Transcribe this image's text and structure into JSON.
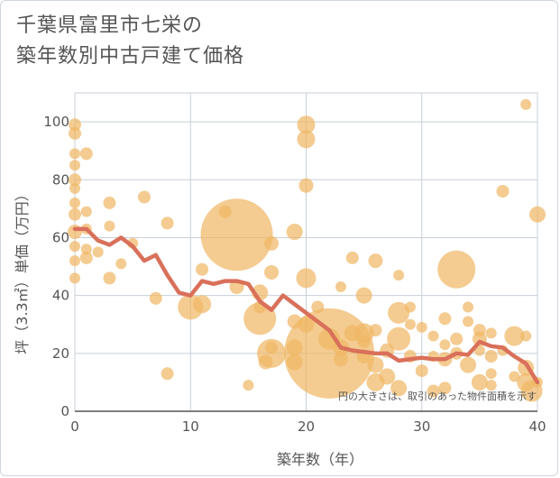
{
  "title": {
    "line1": "千葉県富里市七栄の",
    "line2": "築年数別中古戸建て価格"
  },
  "chart_data": {
    "type": "scatter",
    "xlabel": "築年数（年）",
    "ylabel": "坪（3.3㎡）単価（万円）",
    "xlim": [
      0,
      40
    ],
    "ylim": [
      0,
      110
    ],
    "xticks": [
      0,
      10,
      20,
      30,
      40
    ],
    "yticks": [
      0,
      20,
      40,
      60,
      80,
      100
    ],
    "grid": true,
    "note": "円の大きさは、取引のあった物件面積を示す",
    "bubble_color": "#f0b765",
    "line_color": "#d9705a",
    "bubbles": [
      {
        "x": 0,
        "y": 99,
        "r": 7
      },
      {
        "x": 0,
        "y": 96,
        "r": 7
      },
      {
        "x": 0,
        "y": 89,
        "r": 6
      },
      {
        "x": 0,
        "y": 85,
        "r": 6
      },
      {
        "x": 0,
        "y": 80,
        "r": 7
      },
      {
        "x": 0,
        "y": 77,
        "r": 6
      },
      {
        "x": 0,
        "y": 72,
        "r": 6
      },
      {
        "x": 0,
        "y": 68,
        "r": 7
      },
      {
        "x": 0,
        "y": 62,
        "r": 8
      },
      {
        "x": 0,
        "y": 57,
        "r": 6
      },
      {
        "x": 0,
        "y": 52,
        "r": 6
      },
      {
        "x": 0,
        "y": 46,
        "r": 6
      },
      {
        "x": 1,
        "y": 89,
        "r": 7
      },
      {
        "x": 1,
        "y": 69,
        "r": 6
      },
      {
        "x": 1,
        "y": 63,
        "r": 6
      },
      {
        "x": 1,
        "y": 56,
        "r": 6
      },
      {
        "x": 1,
        "y": 53,
        "r": 7
      },
      {
        "x": 2,
        "y": 55,
        "r": 6
      },
      {
        "x": 3,
        "y": 72,
        "r": 7
      },
      {
        "x": 3,
        "y": 64,
        "r": 6
      },
      {
        "x": 3,
        "y": 46,
        "r": 7
      },
      {
        "x": 4,
        "y": 51,
        "r": 6
      },
      {
        "x": 5,
        "y": 58,
        "r": 6
      },
      {
        "x": 6,
        "y": 74,
        "r": 7
      },
      {
        "x": 7,
        "y": 39,
        "r": 7
      },
      {
        "x": 8,
        "y": 65,
        "r": 7
      },
      {
        "x": 8,
        "y": 13,
        "r": 7
      },
      {
        "x": 10,
        "y": 36,
        "r": 14
      },
      {
        "x": 11,
        "y": 37,
        "r": 10
      },
      {
        "x": 11,
        "y": 49,
        "r": 7
      },
      {
        "x": 13,
        "y": 69,
        "r": 7
      },
      {
        "x": 14,
        "y": 61,
        "r": 40
      },
      {
        "x": 14,
        "y": 43,
        "r": 8
      },
      {
        "x": 15,
        "y": 9,
        "r": 6
      },
      {
        "x": 16,
        "y": 41,
        "r": 9
      },
      {
        "x": 16,
        "y": 36,
        "r": 7
      },
      {
        "x": 16,
        "y": 32,
        "r": 18
      },
      {
        "x": 16.5,
        "y": 17,
        "r": 8
      },
      {
        "x": 17,
        "y": 58,
        "r": 8
      },
      {
        "x": 17,
        "y": 48,
        "r": 8
      },
      {
        "x": 17,
        "y": 22,
        "r": 7
      },
      {
        "x": 17,
        "y": 20,
        "r": 16
      },
      {
        "x": 19,
        "y": 62,
        "r": 9
      },
      {
        "x": 19,
        "y": 31,
        "r": 8
      },
      {
        "x": 19,
        "y": 22,
        "r": 9
      },
      {
        "x": 19,
        "y": 17,
        "r": 9
      },
      {
        "x": 20,
        "y": 99,
        "r": 10
      },
      {
        "x": 20,
        "y": 94,
        "r": 10
      },
      {
        "x": 20,
        "y": 78,
        "r": 8
      },
      {
        "x": 20,
        "y": 46,
        "r": 11
      },
      {
        "x": 20,
        "y": 30,
        "r": 9
      },
      {
        "x": 21,
        "y": 36,
        "r": 7
      },
      {
        "x": 22,
        "y": 20,
        "r": 50
      },
      {
        "x": 22,
        "y": 25,
        "r": 12
      },
      {
        "x": 23,
        "y": 43,
        "r": 6
      },
      {
        "x": 23,
        "y": 22,
        "r": 9
      },
      {
        "x": 23,
        "y": 18,
        "r": 8
      },
      {
        "x": 24,
        "y": 53,
        "r": 7
      },
      {
        "x": 24,
        "y": 27,
        "r": 9
      },
      {
        "x": 25,
        "y": 40,
        "r": 9
      },
      {
        "x": 25,
        "y": 27,
        "r": 11
      },
      {
        "x": 25,
        "y": 24,
        "r": 7
      },
      {
        "x": 25,
        "y": 19,
        "r": 8
      },
      {
        "x": 26,
        "y": 52,
        "r": 8
      },
      {
        "x": 26,
        "y": 28,
        "r": 7
      },
      {
        "x": 26,
        "y": 16,
        "r": 9
      },
      {
        "x": 26,
        "y": 10,
        "r": 10
      },
      {
        "x": 27,
        "y": 21,
        "r": 8
      },
      {
        "x": 27,
        "y": 12,
        "r": 9
      },
      {
        "x": 28,
        "y": 47,
        "r": 6
      },
      {
        "x": 28,
        "y": 34,
        "r": 12
      },
      {
        "x": 28,
        "y": 25,
        "r": 13
      },
      {
        "x": 28,
        "y": 8,
        "r": 9
      },
      {
        "x": 29,
        "y": 36,
        "r": 6
      },
      {
        "x": 29,
        "y": 30,
        "r": 6
      },
      {
        "x": 29,
        "y": 19,
        "r": 7
      },
      {
        "x": 30,
        "y": 29,
        "r": 6
      },
      {
        "x": 30,
        "y": 14,
        "r": 7
      },
      {
        "x": 31,
        "y": 26,
        "r": 6
      },
      {
        "x": 31,
        "y": 19,
        "r": 6
      },
      {
        "x": 31,
        "y": 7,
        "r": 7
      },
      {
        "x": 32,
        "y": 32,
        "r": 7
      },
      {
        "x": 32,
        "y": 23,
        "r": 6
      },
      {
        "x": 32,
        "y": 18,
        "r": 8
      },
      {
        "x": 32,
        "y": 8,
        "r": 7
      },
      {
        "x": 33,
        "y": 49,
        "r": 21
      },
      {
        "x": 33,
        "y": 25,
        "r": 7
      },
      {
        "x": 33,
        "y": 20,
        "r": 7
      },
      {
        "x": 34,
        "y": 36,
        "r": 6
      },
      {
        "x": 34,
        "y": 31,
        "r": 6
      },
      {
        "x": 34,
        "y": 16,
        "r": 9
      },
      {
        "x": 35,
        "y": 28,
        "r": 7
      },
      {
        "x": 35,
        "y": 25,
        "r": 8
      },
      {
        "x": 35,
        "y": 21,
        "r": 6
      },
      {
        "x": 35,
        "y": 10,
        "r": 9
      },
      {
        "x": 36,
        "y": 27,
        "r": 6
      },
      {
        "x": 36,
        "y": 19,
        "r": 7
      },
      {
        "x": 36,
        "y": 13,
        "r": 6
      },
      {
        "x": 36,
        "y": 9,
        "r": 6
      },
      {
        "x": 37,
        "y": 76,
        "r": 7
      },
      {
        "x": 37,
        "y": 21,
        "r": 6
      },
      {
        "x": 38,
        "y": 26,
        "r": 11
      },
      {
        "x": 38,
        "y": 12,
        "r": 6
      },
      {
        "x": 39,
        "y": 106,
        "r": 6
      },
      {
        "x": 39,
        "y": 26,
        "r": 6
      },
      {
        "x": 39,
        "y": 15,
        "r": 9
      },
      {
        "x": 39,
        "y": 10,
        "r": 10
      },
      {
        "x": 39.5,
        "y": 7,
        "r": 12
      },
      {
        "x": 40,
        "y": 68,
        "r": 9
      },
      {
        "x": 40,
        "y": 10,
        "r": 6
      }
    ],
    "line": {
      "x": [
        0,
        1,
        2,
        3,
        4,
        5,
        6,
        7,
        8,
        9,
        10,
        11,
        12,
        13,
        14,
        15,
        16,
        17,
        18,
        19,
        20,
        21,
        22,
        23,
        24,
        25,
        26,
        27,
        28,
        29,
        30,
        31,
        32,
        33,
        34,
        35,
        36,
        37,
        38,
        39,
        40
      ],
      "y": [
        63,
        63,
        59,
        57.5,
        60,
        57,
        52,
        54,
        47,
        41,
        40,
        45,
        44,
        45,
        45,
        44,
        38,
        35,
        40,
        37,
        34,
        31,
        28,
        22,
        21,
        20.5,
        20,
        20,
        17.5,
        18,
        18.5,
        18,
        18,
        20,
        19.5,
        24,
        22.5,
        22,
        19,
        16.5,
        10
      ]
    }
  }
}
